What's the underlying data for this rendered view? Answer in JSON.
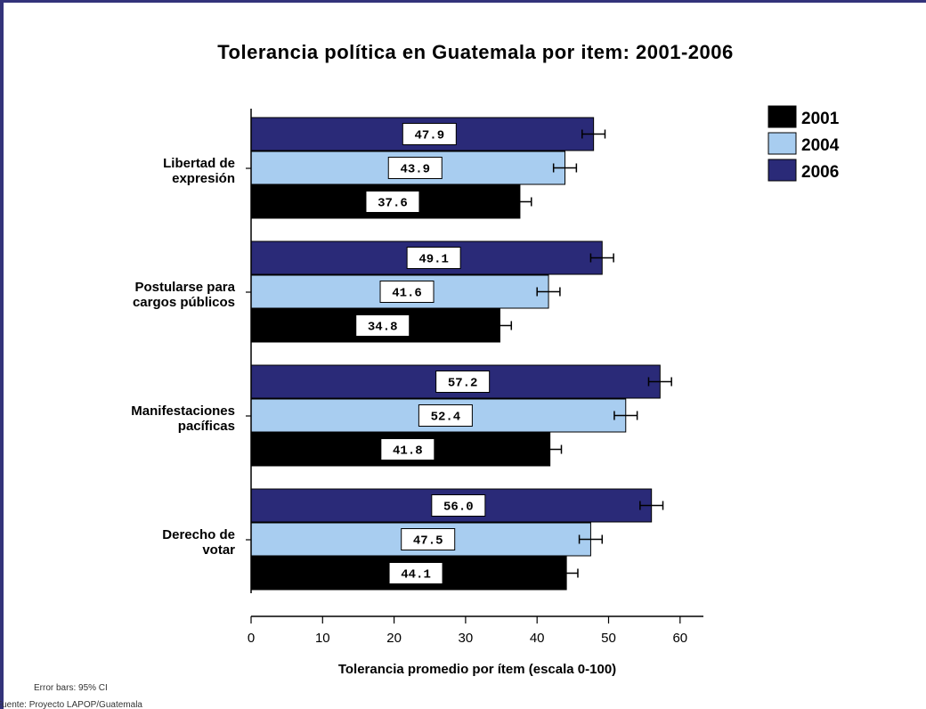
{
  "chart_data": {
    "type": "bar",
    "orientation": "horizontal",
    "title": "Tolerancia política en Guatemala por item: 2001-2006",
    "xlabel": "Tolerancia promedio por ítem (escala 0-100)",
    "ylabel": "",
    "xlim": [
      0,
      63
    ],
    "xticks": [
      "0",
      "10",
      "20",
      "30",
      "40",
      "50",
      "60"
    ],
    "grid": false,
    "legend_position": "top-right",
    "categories": [
      [
        "Libertad de",
        "expresión"
      ],
      [
        "Postularse para",
        "cargos públicos"
      ],
      [
        "Manifestaciones",
        "pacíficas"
      ],
      [
        "Derecho de",
        "votar"
      ]
    ],
    "series": [
      {
        "name": "2001",
        "color": "#000000",
        "values": [
          37.6,
          34.8,
          41.8,
          44.1
        ],
        "labels": [
          "37.6",
          "34.8",
          "41.8",
          "44.1"
        ],
        "error": [
          1.6,
          1.6,
          1.6,
          1.6
        ]
      },
      {
        "name": "2004",
        "color": "#a8cdf0",
        "values": [
          43.9,
          41.6,
          52.4,
          47.5
        ],
        "labels": [
          "43.9",
          "41.6",
          "52.4",
          "47.5"
        ],
        "error": [
          1.6,
          1.6,
          1.6,
          1.6
        ]
      },
      {
        "name": "2006",
        "color": "#2a2a78",
        "values": [
          47.9,
          49.1,
          57.2,
          56.0
        ],
        "labels": [
          "47.9",
          "49.1",
          "57.2",
          "56.0"
        ],
        "error": [
          1.6,
          1.6,
          1.6,
          1.6
        ]
      }
    ],
    "notes": [
      "Error bars: 95% CI",
      "Fuente: Proyecto LAPOP/Guatemala"
    ]
  }
}
